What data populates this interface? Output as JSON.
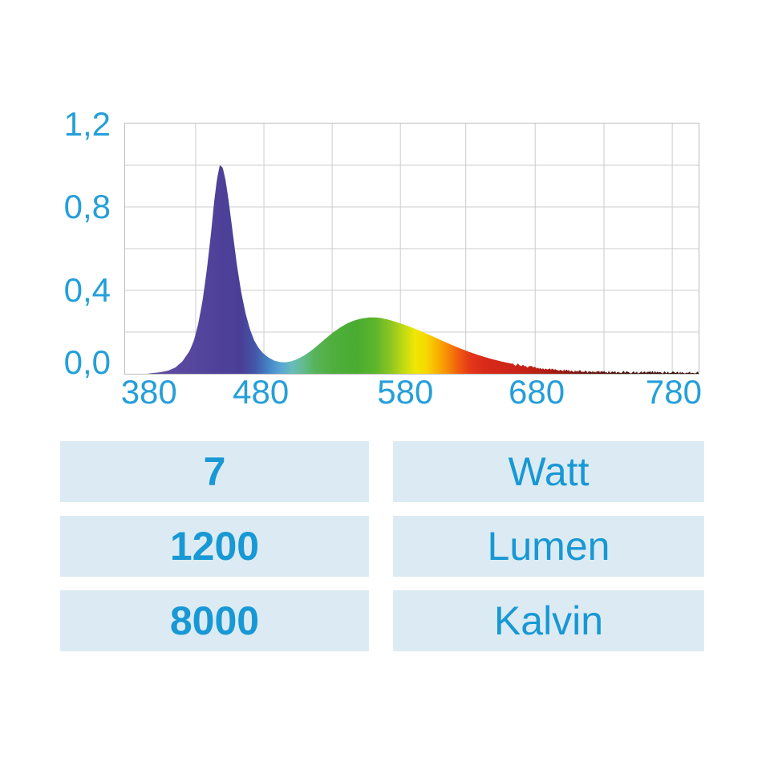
{
  "chart_data": {
    "type": "area",
    "description": "LED lamp emission spectrum, intensity vs wavelength (nm)",
    "xlabel": "",
    "ylabel": "",
    "xlim": [
      380,
      780
    ],
    "ylim": [
      0,
      1.2
    ],
    "grid": {
      "visible": true,
      "h_values": [
        0.2,
        0.4,
        0.6,
        0.8,
        1.0
      ],
      "v_fractions": [
        0.123,
        0.242,
        0.361,
        0.48,
        0.594,
        0.715,
        0.835,
        0.954
      ]
    },
    "x_tick_labels": [
      {
        "text": "380",
        "value": 380,
        "pos": 0.043
      },
      {
        "text": "480",
        "value": 480,
        "pos": 0.238
      },
      {
        "text": "580",
        "value": 580,
        "pos": 0.49
      },
      {
        "text": "680",
        "value": 680,
        "pos": 0.719
      },
      {
        "text": "780",
        "value": 780,
        "pos": 0.958
      }
    ],
    "y_tick_labels": [
      {
        "text": "1,2",
        "value": 1.2,
        "pos": 0.006
      },
      {
        "text": "0,8",
        "value": 0.8,
        "pos": 0.338
      },
      {
        "text": "0,4",
        "value": 0.4,
        "pos": 0.67
      },
      {
        "text": "0,0",
        "value": 0.0,
        "pos": 0.958
      }
    ],
    "spectrum_points": [
      [
        380,
        0
      ],
      [
        395,
        0
      ],
      [
        400,
        0.004
      ],
      [
        405,
        0.008
      ],
      [
        410,
        0.015
      ],
      [
        415,
        0.03
      ],
      [
        420,
        0.06
      ],
      [
        425,
        0.11
      ],
      [
        428,
        0.16
      ],
      [
        431,
        0.24
      ],
      [
        434,
        0.35
      ],
      [
        437,
        0.5
      ],
      [
        440,
        0.68
      ],
      [
        442,
        0.82
      ],
      [
        444,
        0.93
      ],
      [
        446,
        1.0
      ],
      [
        448,
        0.99
      ],
      [
        450,
        0.93
      ],
      [
        452,
        0.84
      ],
      [
        455,
        0.68
      ],
      [
        458,
        0.52
      ],
      [
        461,
        0.39
      ],
      [
        464,
        0.29
      ],
      [
        467,
        0.215
      ],
      [
        470,
        0.16
      ],
      [
        473,
        0.125
      ],
      [
        476,
        0.1
      ],
      [
        480,
        0.078
      ],
      [
        484,
        0.063
      ],
      [
        488,
        0.056
      ],
      [
        492,
        0.055
      ],
      [
        496,
        0.06
      ],
      [
        500,
        0.07
      ],
      [
        505,
        0.088
      ],
      [
        510,
        0.112
      ],
      [
        515,
        0.14
      ],
      [
        520,
        0.17
      ],
      [
        525,
        0.198
      ],
      [
        530,
        0.222
      ],
      [
        535,
        0.242
      ],
      [
        540,
        0.256
      ],
      [
        545,
        0.265
      ],
      [
        550,
        0.27
      ],
      [
        555,
        0.27
      ],
      [
        558,
        0.268
      ],
      [
        562,
        0.262
      ],
      [
        566,
        0.255
      ],
      [
        570,
        0.246
      ],
      [
        575,
        0.235
      ],
      [
        580,
        0.222
      ],
      [
        585,
        0.208
      ],
      [
        590,
        0.193
      ],
      [
        595,
        0.178
      ],
      [
        600,
        0.162
      ],
      [
        605,
        0.147
      ],
      [
        610,
        0.132
      ],
      [
        615,
        0.118
      ],
      [
        620,
        0.105
      ],
      [
        625,
        0.093
      ],
      [
        630,
        0.082
      ],
      [
        635,
        0.072
      ],
      [
        640,
        0.063
      ],
      [
        645,
        0.055
      ],
      [
        650,
        0.048
      ],
      [
        655,
        0.042
      ],
      [
        660,
        0.036
      ],
      [
        665,
        0.031
      ],
      [
        670,
        0.027
      ],
      [
        675,
        0.023
      ],
      [
        680,
        0.02
      ],
      [
        685,
        0.017
      ],
      [
        690,
        0.015
      ],
      [
        695,
        0.013
      ],
      [
        700,
        0.012
      ],
      [
        710,
        0.01
      ],
      [
        720,
        0.009
      ],
      [
        730,
        0.008
      ],
      [
        740,
        0.007
      ],
      [
        750,
        0.007
      ],
      [
        760,
        0.006
      ],
      [
        770,
        0.006
      ],
      [
        780,
        0.006
      ]
    ],
    "spectral_color_stops": [
      [
        400,
        "#5b4aa0"
      ],
      [
        430,
        "#4f4199"
      ],
      [
        448,
        "#4a3f97"
      ],
      [
        458,
        "#4356a8"
      ],
      [
        468,
        "#4585c6"
      ],
      [
        477,
        "#58a7d4"
      ],
      [
        485,
        "#68bcb9"
      ],
      [
        493,
        "#62bb8e"
      ],
      [
        502,
        "#57b357"
      ],
      [
        515,
        "#4fae3d"
      ],
      [
        532,
        "#49ac31"
      ],
      [
        545,
        "#5cb52b"
      ],
      [
        556,
        "#8ac522"
      ],
      [
        566,
        "#c3da12"
      ],
      [
        574,
        "#eee705"
      ],
      [
        582,
        "#f7d900"
      ],
      [
        590,
        "#f9b300"
      ],
      [
        598,
        "#f68a06"
      ],
      [
        606,
        "#ef5a10"
      ],
      [
        614,
        "#e43818"
      ],
      [
        624,
        "#d92a1a"
      ],
      [
        645,
        "#cc2418"
      ],
      [
        662,
        "#bb2015"
      ],
      [
        680,
        "#9c1a11"
      ],
      [
        700,
        "#6b130c"
      ],
      [
        725,
        "#490e08"
      ],
      [
        780,
        "#320a06"
      ]
    ]
  },
  "specs_table": {
    "rows": [
      {
        "value": "7",
        "unit": "Watt"
      },
      {
        "value": "1200",
        "unit": "Lumen"
      },
      {
        "value": "8000",
        "unit": "Kalvin"
      }
    ]
  },
  "colors": {
    "accent_text": "#1898d4",
    "axis_text": "#259fd9",
    "cell_background": "#dcebf3",
    "grid_line": "#cccccc",
    "plot_border": "#bdbdbd"
  }
}
